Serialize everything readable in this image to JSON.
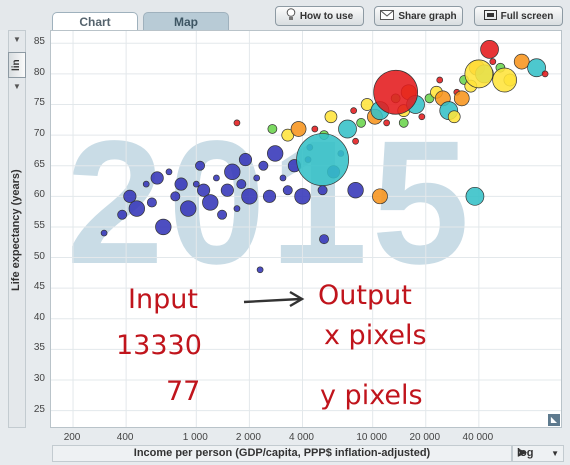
{
  "tabs": {
    "chart": "Chart",
    "map": "Map"
  },
  "toolbar": {
    "how_to_use": "How to use",
    "share_graph": "Share graph",
    "full_screen": "Full screen"
  },
  "y_axis": {
    "scale_button": "lin",
    "label": "Life expectancy (years)",
    "ticks": [
      "85",
      "80",
      "75",
      "70",
      "65",
      "60",
      "55",
      "50",
      "45",
      "40",
      "35",
      "30",
      "25"
    ]
  },
  "x_axis": {
    "label": "Income per person (GDP/capita, PPP$ inflation-adjusted)",
    "scale": "log",
    "ticks": [
      "200",
      "400",
      "1 000",
      "2 000",
      "4 000",
      "10 000",
      "20 000",
      "40 000"
    ]
  },
  "year": "2015",
  "annotations": {
    "input": "Input",
    "output": "Output",
    "input_x": "13330",
    "input_y": "77",
    "out_x": "x pixels",
    "out_y": "y pixels"
  },
  "colors": {
    "asia": "#e41a1c",
    "africa": "#3436b8",
    "americas": "#ffe43a",
    "europe": "#f7941d",
    "middle_east": "#6ad44c",
    "teal": "#34c0c7"
  },
  "chart_data": {
    "type": "scatter",
    "x_scale": "log",
    "xlim": [
      150,
      120000
    ],
    "ylim": [
      22,
      87
    ],
    "points": [
      {
        "x": 300,
        "y": 54
      },
      {
        "x": 380,
        "y": 57
      },
      {
        "x": 420,
        "y": 60
      },
      {
        "x": 460,
        "y": 58
      },
      {
        "x": 520,
        "y": 62
      },
      {
        "x": 560,
        "y": 59
      },
      {
        "x": 600,
        "y": 63
      },
      {
        "x": 650,
        "y": 55
      },
      {
        "x": 700,
        "y": 64
      },
      {
        "x": 760,
        "y": 60
      },
      {
        "x": 820,
        "y": 62
      },
      {
        "x": 900,
        "y": 58
      },
      {
        "x": 1000,
        "y": 62
      },
      {
        "x": 1050,
        "y": 65
      },
      {
        "x": 1100,
        "y": 61
      },
      {
        "x": 1200,
        "y": 59
      },
      {
        "x": 1300,
        "y": 63
      },
      {
        "x": 1400,
        "y": 57
      },
      {
        "x": 1500,
        "y": 61
      },
      {
        "x": 1600,
        "y": 64
      },
      {
        "x": 1700,
        "y": 58
      },
      {
        "x": 1800,
        "y": 62
      },
      {
        "x": 1900,
        "y": 66
      },
      {
        "x": 2000,
        "y": 60
      },
      {
        "x": 2200,
        "y": 63
      },
      {
        "x": 2400,
        "y": 65
      },
      {
        "x": 2600,
        "y": 60
      },
      {
        "x": 2800,
        "y": 67
      },
      {
        "x": 3100,
        "y": 63
      },
      {
        "x": 3300,
        "y": 61
      },
      {
        "x": 3600,
        "y": 65
      },
      {
        "x": 4000,
        "y": 60
      },
      {
        "x": 4400,
        "y": 68
      },
      {
        "x": 5200,
        "y": 61
      },
      {
        "x": 6000,
        "y": 64
      },
      {
        "x": 8000,
        "y": 61
      },
      {
        "x": 2300,
        "y": 48
      },
      {
        "x": 5300,
        "y": 53
      },
      {
        "x": 11000,
        "y": 60
      },
      {
        "x": 38000,
        "y": 60
      },
      {
        "x": 1700,
        "y": 72
      },
      {
        "x": 2700,
        "y": 71
      },
      {
        "x": 3300,
        "y": 70
      },
      {
        "x": 3800,
        "y": 71
      },
      {
        "x": 4300,
        "y": 66
      },
      {
        "x": 4700,
        "y": 71
      },
      {
        "x": 5300,
        "y": 70
      },
      {
        "x": 5800,
        "y": 73
      },
      {
        "x": 6600,
        "y": 67
      },
      {
        "x": 7200,
        "y": 71
      },
      {
        "x": 7800,
        "y": 74
      },
      {
        "x": 8600,
        "y": 72
      },
      {
        "x": 9300,
        "y": 75
      },
      {
        "x": 10300,
        "y": 73
      },
      {
        "x": 11000,
        "y": 74
      },
      {
        "x": 12000,
        "y": 72
      },
      {
        "x": 13500,
        "y": 76
      },
      {
        "x": 15000,
        "y": 74
      },
      {
        "x": 16000,
        "y": 77
      },
      {
        "x": 17500,
        "y": 75
      },
      {
        "x": 19000,
        "y": 73
      },
      {
        "x": 21000,
        "y": 76
      },
      {
        "x": 23000,
        "y": 77
      },
      {
        "x": 25000,
        "y": 76
      },
      {
        "x": 27000,
        "y": 74
      },
      {
        "x": 30000,
        "y": 77
      },
      {
        "x": 33000,
        "y": 79
      },
      {
        "x": 36000,
        "y": 78
      },
      {
        "x": 39000,
        "y": 81
      },
      {
        "x": 43000,
        "y": 80
      },
      {
        "x": 48000,
        "y": 82
      },
      {
        "x": 53000,
        "y": 81
      },
      {
        "x": 60000,
        "y": 79
      },
      {
        "x": 70000,
        "y": 82
      },
      {
        "x": 85000,
        "y": 81
      },
      {
        "x": 95000,
        "y": 80
      },
      {
        "x": 5200,
        "y": 66
      },
      {
        "x": 13500,
        "y": 77
      },
      {
        "x": 40000,
        "y": 80
      },
      {
        "x": 56000,
        "y": 79
      },
      {
        "x": 8000,
        "y": 69
      },
      {
        "x": 15000,
        "y": 72
      },
      {
        "x": 29000,
        "y": 73
      },
      {
        "x": 32000,
        "y": 76
      },
      {
        "x": 46000,
        "y": 84
      },
      {
        "x": 24000,
        "y": 79
      }
    ]
  }
}
